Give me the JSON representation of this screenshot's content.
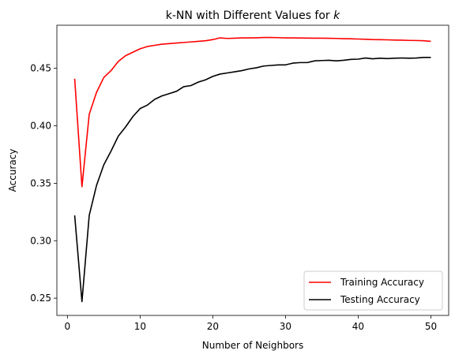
{
  "chart_data": {
    "type": "line",
    "title": "k-NN with Different Values for k",
    "title_parts": [
      "k-NN with Different Values for ",
      "k"
    ],
    "xlabel": "Number of Neighbors",
    "ylabel": "Accuracy",
    "xlim": [
      -1.45,
      52.45
    ],
    "ylim": [
      0.235,
      0.4875
    ],
    "xticks": [
      0,
      10,
      20,
      30,
      40,
      50
    ],
    "yticks": [
      0.25,
      0.3,
      0.35,
      0.4,
      0.45
    ],
    "ytick_labels": [
      "0.25",
      "0.30",
      "0.35",
      "0.40",
      "0.45"
    ],
    "grid": false,
    "legend": "lower-right",
    "x": [
      1,
      2,
      3,
      4,
      5,
      6,
      7,
      8,
      9,
      10,
      11,
      12,
      13,
      14,
      15,
      16,
      17,
      18,
      19,
      20,
      21,
      22,
      23,
      24,
      25,
      26,
      27,
      28,
      29,
      30,
      31,
      32,
      33,
      34,
      35,
      36,
      37,
      38,
      39,
      40,
      41,
      42,
      43,
      44,
      45,
      46,
      47,
      48,
      49,
      50
    ],
    "series": [
      {
        "name": "Training Accuracy",
        "color": "#ff0000",
        "values": [
          0.441,
          0.347,
          0.41,
          0.429,
          0.442,
          0.448,
          0.456,
          0.461,
          0.464,
          0.467,
          0.469,
          0.47,
          0.471,
          0.4715,
          0.472,
          0.4725,
          0.473,
          0.4735,
          0.474,
          0.475,
          0.4765,
          0.476,
          0.4762,
          0.4765,
          0.4765,
          0.4766,
          0.4768,
          0.4768,
          0.4767,
          0.4765,
          0.4765,
          0.4764,
          0.4763,
          0.4762,
          0.4762,
          0.4761,
          0.476,
          0.4758,
          0.4757,
          0.4755,
          0.4753,
          0.475,
          0.4749,
          0.4748,
          0.4746,
          0.4745,
          0.4743,
          0.4742,
          0.474,
          0.4735
        ]
      },
      {
        "name": "Testing Accuracy",
        "color": "#000000",
        "values": [
          0.322,
          0.247,
          0.322,
          0.348,
          0.366,
          0.378,
          0.391,
          0.399,
          0.408,
          0.415,
          0.418,
          0.423,
          0.426,
          0.428,
          0.43,
          0.434,
          0.435,
          0.438,
          0.44,
          0.443,
          0.445,
          0.446,
          0.447,
          0.448,
          0.4495,
          0.4505,
          0.452,
          0.4525,
          0.453,
          0.453,
          0.4545,
          0.455,
          0.455,
          0.4565,
          0.4568,
          0.457,
          0.4565,
          0.457,
          0.4578,
          0.458,
          0.459,
          0.4583,
          0.4588,
          0.4585,
          0.4588,
          0.459,
          0.4588,
          0.459,
          0.4595,
          0.4595
        ]
      }
    ]
  }
}
